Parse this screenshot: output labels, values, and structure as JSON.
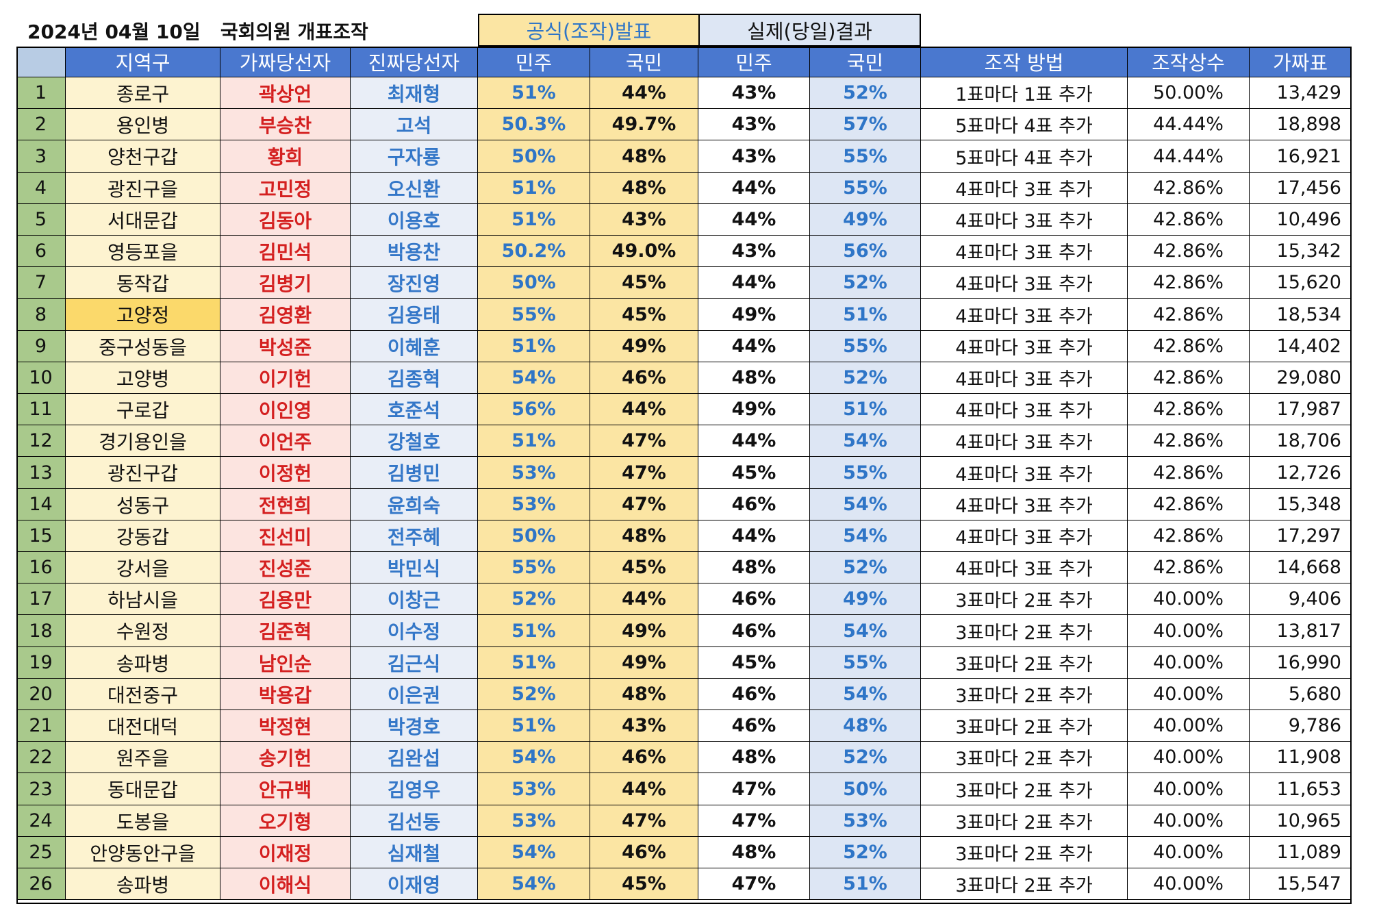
{
  "title": "2024년 04월 10일   국회의원 개표조작",
  "group_headers": {
    "official": "공식(조작)발표",
    "actual": "실제(당일)결과"
  },
  "columns": [
    "",
    "지역구",
    "가짜당선자",
    "진짜당선자",
    "민주",
    "국민",
    "민주",
    "국민",
    "조작 방법",
    "조작상수",
    "가짜표"
  ],
  "highlight_row": 8,
  "rows": [
    {
      "no": "1",
      "region": "종로구",
      "fake": "곽상언",
      "real": "최재형",
      "odem": "51%",
      "oppp": "44%",
      "adem": "43%",
      "appp": "52%",
      "method": "1표마다 1표 추가",
      "const": "50.00%",
      "fake_votes": "13,429"
    },
    {
      "no": "2",
      "region": "용인병",
      "fake": "부승찬",
      "real": "고석",
      "odem": "50.3%",
      "oppp": "49.7%",
      "adem": "43%",
      "appp": "57%",
      "method": "5표마다 4표 추가",
      "const": "44.44%",
      "fake_votes": "18,898"
    },
    {
      "no": "3",
      "region": "양천구갑",
      "fake": "황희",
      "real": "구자룡",
      "odem": "50%",
      "oppp": "48%",
      "adem": "43%",
      "appp": "55%",
      "method": "5표마다 4표 추가",
      "const": "44.44%",
      "fake_votes": "16,921"
    },
    {
      "no": "4",
      "region": "광진구을",
      "fake": "고민정",
      "real": "오신환",
      "odem": "51%",
      "oppp": "48%",
      "adem": "44%",
      "appp": "55%",
      "method": "4표마다 3표 추가",
      "const": "42.86%",
      "fake_votes": "17,456"
    },
    {
      "no": "5",
      "region": "서대문갑",
      "fake": "김동아",
      "real": "이용호",
      "odem": "51%",
      "oppp": "43%",
      "adem": "44%",
      "appp": "49%",
      "method": "4표마다 3표 추가",
      "const": "42.86%",
      "fake_votes": "10,496"
    },
    {
      "no": "6",
      "region": "영등포을",
      "fake": "김민석",
      "real": "박용찬",
      "odem": "50.2%",
      "oppp": "49.0%",
      "adem": "43%",
      "appp": "56%",
      "method": "4표마다 3표 추가",
      "const": "42.86%",
      "fake_votes": "15,342"
    },
    {
      "no": "7",
      "region": "동작갑",
      "fake": "김병기",
      "real": "장진영",
      "odem": "50%",
      "oppp": "45%",
      "adem": "44%",
      "appp": "52%",
      "method": "4표마다 3표 추가",
      "const": "42.86%",
      "fake_votes": "15,620"
    },
    {
      "no": "8",
      "region": "고양정",
      "fake": "김영환",
      "real": "김용태",
      "odem": "55%",
      "oppp": "45%",
      "adem": "49%",
      "appp": "51%",
      "method": "4표마다 3표 추가",
      "const": "42.86%",
      "fake_votes": "18,534"
    },
    {
      "no": "9",
      "region": "중구성동을",
      "fake": "박성준",
      "real": "이혜훈",
      "odem": "51%",
      "oppp": "49%",
      "adem": "44%",
      "appp": "55%",
      "method": "4표마다 3표 추가",
      "const": "42.86%",
      "fake_votes": "14,402"
    },
    {
      "no": "10",
      "region": "고양병",
      "fake": "이기헌",
      "real": "김종혁",
      "odem": "54%",
      "oppp": "46%",
      "adem": "48%",
      "appp": "52%",
      "method": "4표마다 3표 추가",
      "const": "42.86%",
      "fake_votes": "29,080"
    },
    {
      "no": "11",
      "region": "구로갑",
      "fake": "이인영",
      "real": "호준석",
      "odem": "56%",
      "oppp": "44%",
      "adem": "49%",
      "appp": "51%",
      "method": "4표마다 3표 추가",
      "const": "42.86%",
      "fake_votes": "17,987"
    },
    {
      "no": "12",
      "region": "경기용인을",
      "fake": "이언주",
      "real": "강철호",
      "odem": "51%",
      "oppp": "47%",
      "adem": "44%",
      "appp": "54%",
      "method": "4표마다 3표 추가",
      "const": "42.86%",
      "fake_votes": "18,706"
    },
    {
      "no": "13",
      "region": "광진구갑",
      "fake": "이정헌",
      "real": "김병민",
      "odem": "53%",
      "oppp": "47%",
      "adem": "45%",
      "appp": "55%",
      "method": "4표마다 3표 추가",
      "const": "42.86%",
      "fake_votes": "12,726"
    },
    {
      "no": "14",
      "region": "성동구",
      "fake": "전현희",
      "real": "윤희숙",
      "odem": "53%",
      "oppp": "47%",
      "adem": "46%",
      "appp": "54%",
      "method": "4표마다 3표 추가",
      "const": "42.86%",
      "fake_votes": "15,348"
    },
    {
      "no": "15",
      "region": "강동갑",
      "fake": "진선미",
      "real": "전주혜",
      "odem": "50%",
      "oppp": "48%",
      "adem": "44%",
      "appp": "54%",
      "method": "4표마다 3표 추가",
      "const": "42.86%",
      "fake_votes": "17,297"
    },
    {
      "no": "16",
      "region": "강서을",
      "fake": "진성준",
      "real": "박민식",
      "odem": "55%",
      "oppp": "45%",
      "adem": "48%",
      "appp": "52%",
      "method": "4표마다 3표 추가",
      "const": "42.86%",
      "fake_votes": "14,668"
    },
    {
      "no": "17",
      "region": "하남시을",
      "fake": "김용만",
      "real": "이창근",
      "odem": "52%",
      "oppp": "44%",
      "adem": "46%",
      "appp": "49%",
      "method": "3표마다 2표 추가",
      "const": "40.00%",
      "fake_votes": "9,406"
    },
    {
      "no": "18",
      "region": "수원정",
      "fake": "김준혁",
      "real": "이수정",
      "odem": "51%",
      "oppp": "49%",
      "adem": "46%",
      "appp": "54%",
      "method": "3표마다 2표 추가",
      "const": "40.00%",
      "fake_votes": "13,817"
    },
    {
      "no": "19",
      "region": "송파병",
      "fake": "남인순",
      "real": "김근식",
      "odem": "51%",
      "oppp": "49%",
      "adem": "45%",
      "appp": "55%",
      "method": "3표마다 2표 추가",
      "const": "40.00%",
      "fake_votes": "16,990"
    },
    {
      "no": "20",
      "region": "대전중구",
      "fake": "박용갑",
      "real": "이은권",
      "odem": "52%",
      "oppp": "48%",
      "adem": "46%",
      "appp": "54%",
      "method": "3표마다 2표 추가",
      "const": "40.00%",
      "fake_votes": "5,680"
    },
    {
      "no": "21",
      "region": "대전대덕",
      "fake": "박정현",
      "real": "박경호",
      "odem": "51%",
      "oppp": "43%",
      "adem": "46%",
      "appp": "48%",
      "method": "3표마다 2표 추가",
      "const": "40.00%",
      "fake_votes": "9,786"
    },
    {
      "no": "22",
      "region": "원주을",
      "fake": "송기헌",
      "real": "김완섭",
      "odem": "54%",
      "oppp": "46%",
      "adem": "48%",
      "appp": "52%",
      "method": "3표마다 2표 추가",
      "const": "40.00%",
      "fake_votes": "11,908"
    },
    {
      "no": "23",
      "region": "동대문갑",
      "fake": "안규백",
      "real": "김영우",
      "odem": "53%",
      "oppp": "44%",
      "adem": "47%",
      "appp": "50%",
      "method": "3표마다 2표 추가",
      "const": "40.00%",
      "fake_votes": "11,653"
    },
    {
      "no": "24",
      "region": "도봉을",
      "fake": "오기형",
      "real": "김선동",
      "odem": "53%",
      "oppp": "47%",
      "adem": "47%",
      "appp": "53%",
      "method": "3표마다 2표 추가",
      "const": "40.00%",
      "fake_votes": "10,965"
    },
    {
      "no": "25",
      "region": "안양동안구을",
      "fake": "이재정",
      "real": "심재철",
      "odem": "54%",
      "oppp": "46%",
      "adem": "48%",
      "appp": "52%",
      "method": "3표마다 2표 추가",
      "const": "40.00%",
      "fake_votes": "11,089"
    },
    {
      "no": "26",
      "region": "송파병",
      "fake": "이해식",
      "real": "이재영",
      "odem": "54%",
      "oppp": "45%",
      "adem": "47%",
      "appp": "51%",
      "method": "3표마다 2표 추가",
      "const": "40.00%",
      "fake_votes": "15,547"
    }
  ],
  "colors": {
    "header_blue": "#4a78cf",
    "official_yellow": "#fbe5a3",
    "actual_blue": "#dde6f4",
    "fake_red": "#d42020",
    "real_blue": "#3477c8",
    "number_green": "#a9c98c"
  }
}
